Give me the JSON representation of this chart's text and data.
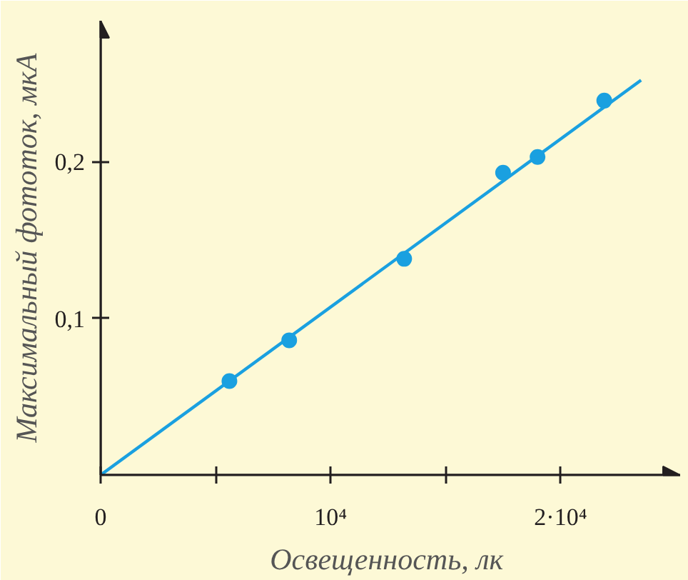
{
  "chart_data": {
    "type": "scatter",
    "xlabel": "Освещенность,  лк",
    "ylabel": "Максимальный фототок, мкА",
    "xlim": [
      0,
      25200
    ],
    "ylim": [
      0,
      0.29
    ],
    "xticks": [
      {
        "value": 0,
        "label": "0"
      },
      {
        "value": 5000,
        "label": null
      },
      {
        "value": 10000,
        "label": "10⁴"
      },
      {
        "value": 15000,
        "label": null
      },
      {
        "value": 20000,
        "label": "2·10⁴"
      }
    ],
    "yticks": [
      {
        "value": 0.1,
        "label": "0,1"
      },
      {
        "value": 0.2,
        "label": "0,2"
      }
    ],
    "grid": false,
    "marker": "circle",
    "series": [
      {
        "color": "#1aa0e0",
        "x": [
          5600,
          8200,
          13200,
          17500,
          19000,
          21900
        ],
        "values": [
          0.06,
          0.086,
          0.138,
          0.193,
          0.203,
          0.239
        ]
      },
      {
        "type": "line",
        "color": "#1aa0e0",
        "line_style": "solid",
        "marker": "none",
        "x": [
          0,
          23500
        ],
        "values": [
          0,
          0.252
        ]
      }
    ]
  }
}
